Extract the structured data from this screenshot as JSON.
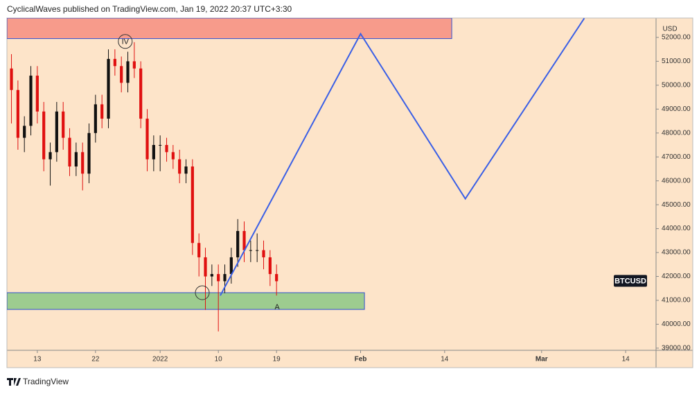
{
  "header": "CyclicalWaves published on TradingView.com, Jan 19, 2022 20:37 UTC+3:30",
  "footer": "TradingView",
  "chart_data": {
    "type": "candlestick",
    "symbol": "BTCUSD",
    "currency": "USD",
    "background": "#fde4c9",
    "up_color": "#111111",
    "down_color": "#e01010",
    "xlim": [
      -4.7,
      95.7
    ],
    "xticks": [
      {
        "value": 0,
        "label": "13"
      },
      {
        "value": 9,
        "label": "22"
      },
      {
        "value": 19,
        "label": "2022"
      },
      {
        "value": 28,
        "label": "10"
      },
      {
        "value": 37,
        "label": "19"
      },
      {
        "value": 50,
        "label": "Feb"
      },
      {
        "value": 63,
        "label": "14"
      },
      {
        "value": 78,
        "label": "Mar"
      },
      {
        "value": 91,
        "label": "14"
      }
    ],
    "ylim": [
      38910,
      52810
    ],
    "yticks": [
      {
        "value": 39000,
        "label": "39000.00"
      },
      {
        "value": 40000,
        "label": "40000.00"
      },
      {
        "value": 41000,
        "label": "41000.00"
      },
      {
        "value": 42000,
        "label": "42000.00"
      },
      {
        "value": 43000,
        "label": "43000.00"
      },
      {
        "value": 44000,
        "label": "44000.00"
      },
      {
        "value": 45000,
        "label": "45000.00"
      },
      {
        "value": 46000,
        "label": "46000.00"
      },
      {
        "value": 47000,
        "label": "47000.00"
      },
      {
        "value": 48000,
        "label": "48000.00"
      },
      {
        "value": 49000,
        "label": "49000.00"
      },
      {
        "value": 50000,
        "label": "50000.00"
      },
      {
        "value": 51000,
        "label": "51000.00"
      },
      {
        "value": 52000,
        "label": "52000.00"
      }
    ],
    "x": [
      -4,
      -3,
      -2,
      -1,
      0,
      1,
      2,
      3,
      4,
      5,
      6,
      7,
      8,
      9,
      10,
      11,
      12,
      13,
      14,
      15,
      16,
      17,
      18,
      19,
      20,
      21,
      22,
      23,
      24,
      25,
      26,
      27,
      28,
      29,
      30,
      31,
      32,
      33,
      34,
      35,
      36,
      37
    ],
    "open": [
      50700,
      49800,
      47800,
      48300,
      50400,
      48900,
      46900,
      47200,
      48900,
      47800,
      46600,
      47200,
      46300,
      48000,
      49200,
      48600,
      51100,
      50800,
      50100,
      51000,
      50700,
      48600,
      46900,
      47500,
      47500,
      47200,
      46900,
      46300,
      46600,
      43400,
      42800,
      42000,
      42100,
      41800,
      42100,
      42800,
      43900,
      43100,
      43100,
      43100,
      42800,
      42100
    ],
    "high": [
      51300,
      50200,
      48700,
      50800,
      50800,
      49300,
      47600,
      49300,
      49300,
      48200,
      47600,
      47600,
      48400,
      49600,
      49600,
      51500,
      51500,
      51200,
      51400,
      51800,
      51000,
      49000,
      47900,
      47900,
      47800,
      47500,
      47300,
      46900,
      46900,
      43800,
      43200,
      42500,
      42500,
      42500,
      43200,
      44400,
      44300,
      43500,
      43800,
      43500,
      43100,
      42500
    ],
    "low": [
      48400,
      47300,
      47200,
      47900,
      48400,
      46400,
      45800,
      46800,
      47300,
      46200,
      46200,
      45600,
      45900,
      47600,
      48200,
      48200,
      50400,
      49700,
      49700,
      50300,
      48200,
      46400,
      46400,
      46400,
      46800,
      46500,
      45900,
      45900,
      42900,
      42000,
      40600,
      41600,
      39700,
      41300,
      41700,
      42400,
      42600,
      42600,
      42600,
      42300,
      41600,
      41200
    ],
    "close": [
      49800,
      47800,
      48300,
      50400,
      48900,
      46900,
      47200,
      48900,
      47800,
      46600,
      47200,
      46300,
      48000,
      49200,
      48600,
      51100,
      50800,
      50100,
      51000,
      50700,
      48600,
      46900,
      47500,
      47500,
      47200,
      46900,
      46300,
      46600,
      43400,
      42800,
      42000,
      42100,
      41800,
      42100,
      42800,
      43900,
      43100,
      43100,
      43100,
      42800,
      42100,
      41800
    ],
    "zones": [
      {
        "color": "#f79b8b",
        "x0": -4.7,
        "x1": 64.1,
        "low": 51950,
        "high": 52810
      },
      {
        "color": "#9dcc8f",
        "x0": -4.7,
        "x1": 50.6,
        "low": 40620,
        "high": 41320
      }
    ],
    "projection": {
      "color": "#3a5fe6",
      "x": [
        28.3,
        50,
        66.2,
        84.6
      ],
      "values": [
        41200,
        52150,
        45250,
        52800
      ]
    },
    "annotations": [
      {
        "text": "IV",
        "x": 13.6,
        "y": 51830
      },
      {
        "text": "A",
        "x": 37.1,
        "y": 40740
      }
    ]
  }
}
